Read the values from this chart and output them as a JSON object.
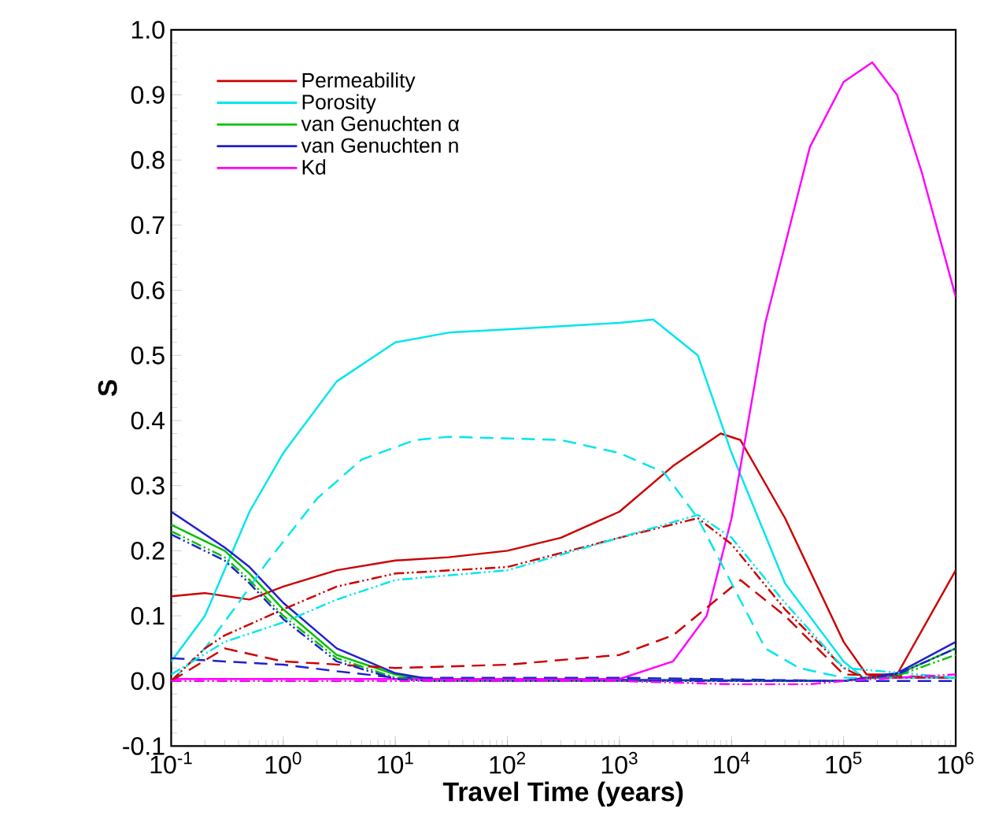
{
  "chart_data": {
    "type": "line",
    "xlabel": "Travel Time (years)",
    "ylabel": "S",
    "log": "x",
    "legend": "top left",
    "xlim": [
      0.1,
      1000000
    ],
    "ylim": [
      -0.1,
      1.0
    ],
    "xticks": [
      {
        "value": 0.1,
        "label": "10$^{-1}$"
      },
      {
        "value": 1,
        "label": "10$^{0}$"
      },
      {
        "value": 10,
        "label": "10$^{1}$"
      },
      {
        "value": 100,
        "label": "10$^{2}$"
      },
      {
        "value": 1000,
        "label": "10$^{3}$"
      },
      {
        "value": 10000,
        "label": "10$^{4}$"
      },
      {
        "value": 100000,
        "label": "10$^{5}$"
      },
      {
        "value": 1000000,
        "label": "10$^{6}$"
      }
    ],
    "yticks": [
      {
        "value": -0.1,
        "label": "-0.1"
      },
      {
        "value": 0,
        "label": "0.0"
      },
      {
        "value": 0.1,
        "label": "0.1"
      },
      {
        "value": 0.2,
        "label": "0.2"
      },
      {
        "value": 0.3,
        "label": "0.3"
      },
      {
        "value": 0.4,
        "label": "0.4"
      },
      {
        "value": 0.5,
        "label": "0.5"
      },
      {
        "value": 0.6,
        "label": "0.6"
      },
      {
        "value": 0.7,
        "label": "0.7"
      },
      {
        "value": 0.8,
        "label": "0.8"
      },
      {
        "value": 0.9,
        "label": "0.9"
      },
      {
        "value": 1.0,
        "label": "1.0"
      }
    ],
    "series": [
      {
        "name": "Permeability",
        "color": "#cc0000",
        "line_style": "solid",
        "x": [
          0.1,
          0.2,
          0.5,
          1,
          3,
          10,
          30,
          100,
          300,
          1000,
          3000,
          8000,
          12000,
          30000,
          100000,
          160000,
          300000,
          1000000
        ],
        "values": [
          0.13,
          0.135,
          0.125,
          0.145,
          0.17,
          0.185,
          0.19,
          0.2,
          0.22,
          0.26,
          0.33,
          0.38,
          0.37,
          0.25,
          0.06,
          0.01,
          0.01,
          0.17
        ]
      },
      {
        "name": "Porosity",
        "color": "#00e5ee",
        "line_style": "solid",
        "x": [
          0.1,
          0.2,
          0.5,
          1,
          3,
          10,
          30,
          100,
          1000,
          2000,
          5000,
          10000,
          30000,
          100000,
          150000,
          1000000
        ],
        "values": [
          0.03,
          0.1,
          0.26,
          0.35,
          0.46,
          0.52,
          0.535,
          0.54,
          0.55,
          0.555,
          0.5,
          0.35,
          0.15,
          0.03,
          0.005,
          0.005
        ]
      },
      {
        "name": "van Genuchten α",
        "color": "#00c000",
        "line_style": "solid",
        "x": [
          0.1,
          0.3,
          0.5,
          1,
          3,
          10,
          20,
          100000,
          300000,
          1000000
        ],
        "values": [
          0.24,
          0.2,
          0.165,
          0.11,
          0.04,
          0.01,
          0.002,
          0.0,
          0.01,
          0.05
        ]
      },
      {
        "name": "van Genuchten n",
        "color": "#2020d0",
        "line_style": "solid",
        "x": [
          0.1,
          0.3,
          0.5,
          1,
          3,
          10,
          20,
          100000,
          300000,
          1000000
        ],
        "values": [
          0.26,
          0.205,
          0.175,
          0.12,
          0.05,
          0.012,
          0.003,
          0.0,
          0.012,
          0.06
        ]
      },
      {
        "name": "Kd",
        "color": "#ff00ff",
        "line_style": "solid",
        "x": [
          0.1,
          1000,
          3000,
          6000,
          10000,
          20000,
          50000,
          100000,
          180000,
          300000,
          500000,
          1000000
        ],
        "values": [
          0.003,
          0.003,
          0.03,
          0.1,
          0.25,
          0.55,
          0.82,
          0.92,
          0.95,
          0.9,
          0.78,
          0.59
        ]
      },
      {
        "color": "#cc0000",
        "line_style": "dashed",
        "x": [
          0.1,
          0.3,
          1,
          10,
          100,
          1000,
          3000,
          12000,
          30000,
          100000,
          1000000
        ],
        "values": [
          0.0,
          0.05,
          0.03,
          0.02,
          0.025,
          0.04,
          0.07,
          0.155,
          0.1,
          0.01,
          0.005
        ]
      },
      {
        "color": "#00e5ee",
        "line_style": "dashed",
        "x": [
          0.1,
          0.2,
          0.4,
          0.7,
          2,
          5,
          15,
          30,
          300,
          1000,
          2500,
          5000,
          10000,
          20000,
          40000,
          100000,
          1000000
        ],
        "values": [
          0.0,
          0.05,
          0.12,
          0.18,
          0.28,
          0.34,
          0.37,
          0.375,
          0.37,
          0.35,
          0.32,
          0.25,
          0.15,
          0.05,
          0.02,
          0.005,
          0.005
        ]
      },
      {
        "color": "#2020d0",
        "line_style": "dashed",
        "x": [
          0.1,
          0.3,
          1,
          3,
          10,
          1000,
          100000,
          1000000
        ],
        "values": [
          0.035,
          0.03,
          0.025,
          0.015,
          0.005,
          0.005,
          0.0,
          0.0
        ]
      },
      {
        "color": "#cc0000",
        "line_style": "dashdot",
        "x": [
          0.1,
          0.2,
          0.3,
          1,
          3,
          10,
          100,
          1000,
          5000,
          10000,
          30000,
          100000,
          150000,
          1000000
        ],
        "values": [
          0.0,
          0.05,
          0.07,
          0.11,
          0.145,
          0.165,
          0.175,
          0.22,
          0.25,
          0.21,
          0.11,
          0.02,
          0.005,
          0.005
        ]
      },
      {
        "color": "#00e5ee",
        "line_style": "dashdot",
        "x": [
          0.1,
          0.3,
          1,
          3,
          10,
          100,
          1000,
          5000,
          10000,
          30000,
          100000,
          1000000
        ],
        "values": [
          0.01,
          0.06,
          0.09,
          0.125,
          0.155,
          0.17,
          0.22,
          0.255,
          0.22,
          0.12,
          0.02,
          0.005
        ]
      },
      {
        "color": "#00c000",
        "line_style": "dashdot",
        "x": [
          0.1,
          0.3,
          0.5,
          1,
          3,
          10,
          20,
          100000,
          300000,
          1000000
        ],
        "values": [
          0.23,
          0.19,
          0.155,
          0.1,
          0.035,
          0.005,
          0.0,
          0.0,
          0.008,
          0.04
        ]
      },
      {
        "color": "#2020d0",
        "line_style": "dashdot",
        "x": [
          0.1,
          0.3,
          0.5,
          1,
          3,
          10,
          20,
          100000,
          300000,
          1000000
        ],
        "values": [
          0.225,
          0.185,
          0.15,
          0.095,
          0.03,
          0.003,
          0.0,
          0.0,
          0.01,
          0.05
        ]
      },
      {
        "color": "#ff00ff",
        "line_style": "dashdot",
        "x": [
          0.1,
          1000,
          10000,
          50000,
          100000,
          300000,
          1000000
        ],
        "values": [
          0.0,
          0.0,
          -0.005,
          -0.005,
          0.0,
          0.005,
          0.01
        ]
      }
    ]
  }
}
